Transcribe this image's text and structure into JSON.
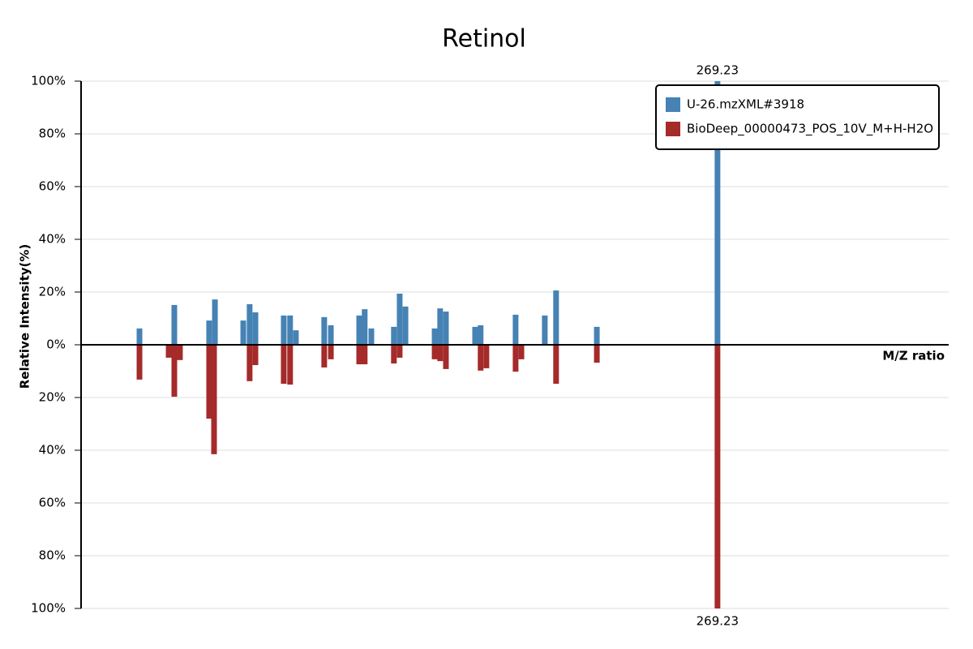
{
  "chart_data": {
    "type": "mirror-bar",
    "title": "Retinol",
    "y_label": "Relative Intensity(%)",
    "x_label": "M/Z ratio",
    "xlim": [
      49.1,
      349.2
    ],
    "ylim": [
      -100,
      100
    ],
    "yticks": [
      {
        "value": 100,
        "label": "100%"
      },
      {
        "value": 80,
        "label": "80%"
      },
      {
        "value": 60,
        "label": "60%"
      },
      {
        "value": 40,
        "label": "40%"
      },
      {
        "value": 20,
        "label": "20%"
      },
      {
        "value": 0,
        "label": "0%"
      },
      {
        "value": -20,
        "label": "20%"
      },
      {
        "value": -40,
        "label": "40%"
      },
      {
        "value": -60,
        "label": "60%"
      },
      {
        "value": -80,
        "label": "80%"
      },
      {
        "value": -100,
        "label": "100%"
      }
    ],
    "grid": true,
    "legend": "top-right",
    "series": [
      {
        "name": "U-26.mzXML#3918",
        "color": "#4682b4",
        "x": [
          69.3,
          81.35,
          93.4,
          95.4,
          105.2,
          107.4,
          109.4,
          119.2,
          121.4,
          123.4,
          133.2,
          135.5,
          145.3,
          147.2,
          149.5,
          157.3,
          159.3,
          161.3,
          171.4,
          173.3,
          175.3,
          185.4,
          187.3,
          199.4,
          209.5,
          213.4,
          227.5,
          269.23
        ],
        "values": [
          6.2,
          15.1,
          9.2,
          17.2,
          9.2,
          15.4,
          12.3,
          11.1,
          11.1,
          5.5,
          10.5,
          7.4,
          11.1,
          13.5,
          6.2,
          6.8,
          19.4,
          14.5,
          6.2,
          13.8,
          12.6,
          6.8,
          7.4,
          11.4,
          11.1,
          20.6,
          6.8,
          100
        ]
      },
      {
        "name": "BioDeep_00000473_POS_10V_M+H-H2O",
        "color": "#a52a2a",
        "x": [
          69.3,
          79.4,
          81.35,
          83.3,
          93.4,
          95.09,
          107.4,
          109.4,
          119.2,
          121.4,
          133.2,
          135.5,
          145.3,
          147.2,
          157.3,
          159.3,
          171.4,
          173.3,
          175.3,
          187.3,
          189.3,
          199.4,
          201.4,
          213.4,
          227.5,
          269.23
        ],
        "values": [
          -13.2,
          -4.9,
          -19.7,
          -5.8,
          -28.0,
          -41.5,
          -13.8,
          -7.7,
          -14.8,
          -15.1,
          -8.6,
          -5.5,
          -7.4,
          -7.4,
          -7.1,
          -4.9,
          -5.5,
          -6.2,
          -9.2,
          -9.8,
          -8.9,
          -10.2,
          -5.5,
          -14.8,
          -6.8,
          -100
        ]
      }
    ]
  }
}
